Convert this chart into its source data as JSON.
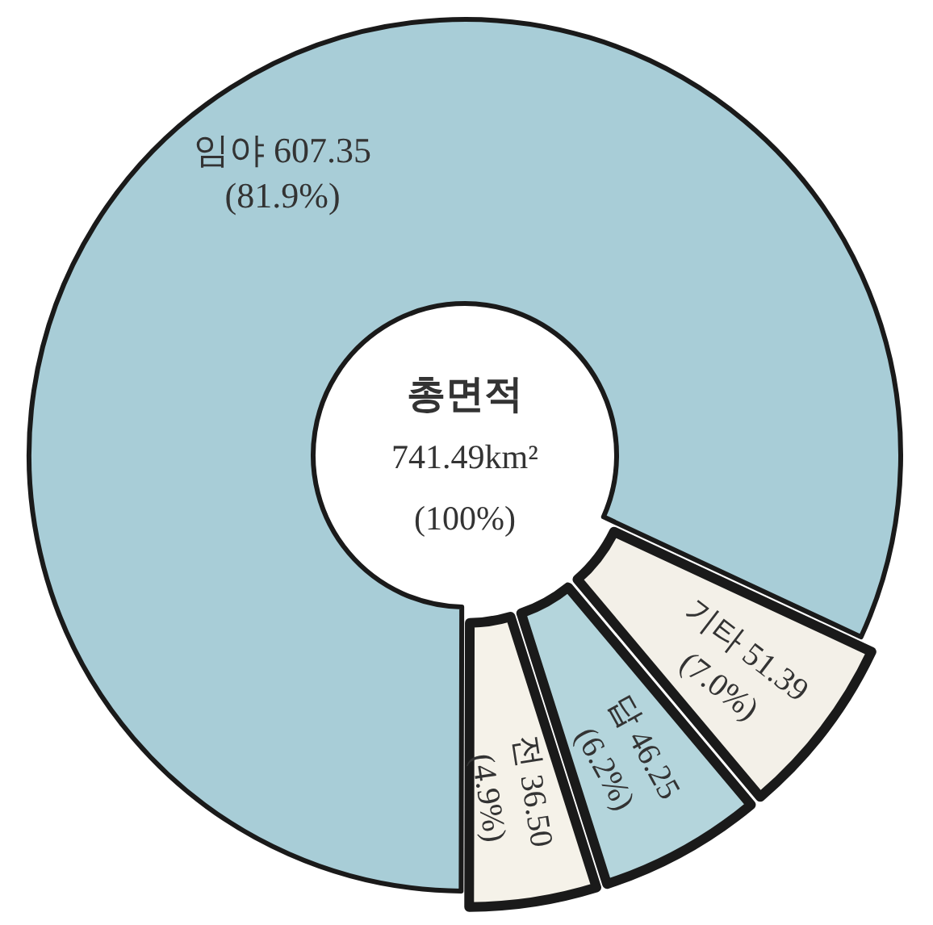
{
  "chart_data": {
    "type": "donut",
    "categories": [
      "기타",
      "답",
      "전",
      "임야"
    ],
    "values": [
      51.39,
      46.25,
      36.5,
      607.35
    ],
    "colors": [
      "#f3f0e8",
      "#b4d5dc",
      "#f5f2e9",
      "#a8cdd7"
    ],
    "value_labels": [
      "51.39 (7.0%)",
      "46.25 (6.2%)",
      "36.50 (4.9%)",
      "607.35 (81.9%)"
    ],
    "annotations": [
      "총면적",
      "741.49km²",
      "(100%)"
    ]
  }
}
